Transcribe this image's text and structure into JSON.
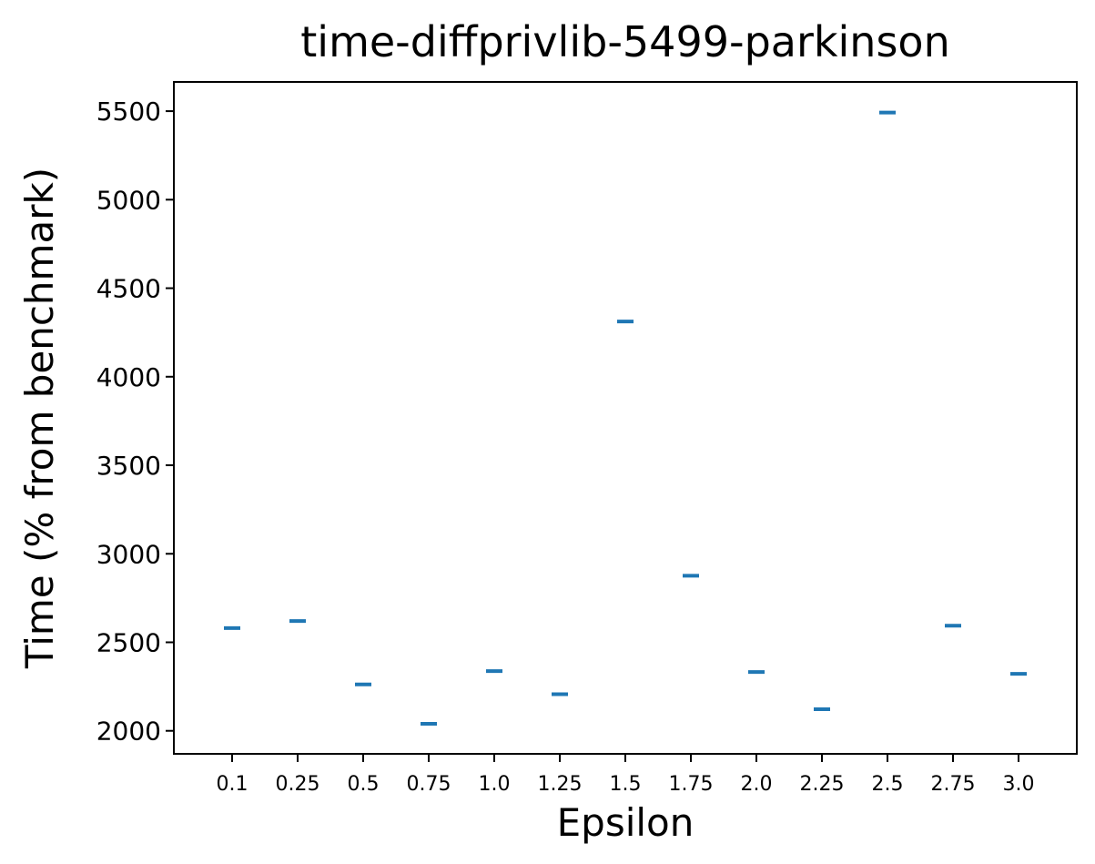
{
  "chart_data": {
    "type": "scatter",
    "title": "time-diffprivlib-5499-parkinson",
    "xlabel": "Epsilon",
    "ylabel": "Time (% from benchmark)",
    "categories": [
      "0.1",
      "0.25",
      "0.5",
      "0.75",
      "1.0",
      "1.25",
      "1.5",
      "1.75",
      "2.0",
      "2.25",
      "2.5",
      "2.75",
      "3.0"
    ],
    "values": [
      2580,
      2620,
      2262,
      2040,
      2337,
      2207,
      4312,
      2876,
      2332,
      2122,
      5492,
      2594,
      2322
    ],
    "yticks": [
      2000,
      2500,
      3000,
      3500,
      4000,
      4500,
      5000,
      5500
    ],
    "ylim": [
      1870,
      5665
    ],
    "marker": "hline",
    "color": "#1f77b4",
    "grid": false
  }
}
